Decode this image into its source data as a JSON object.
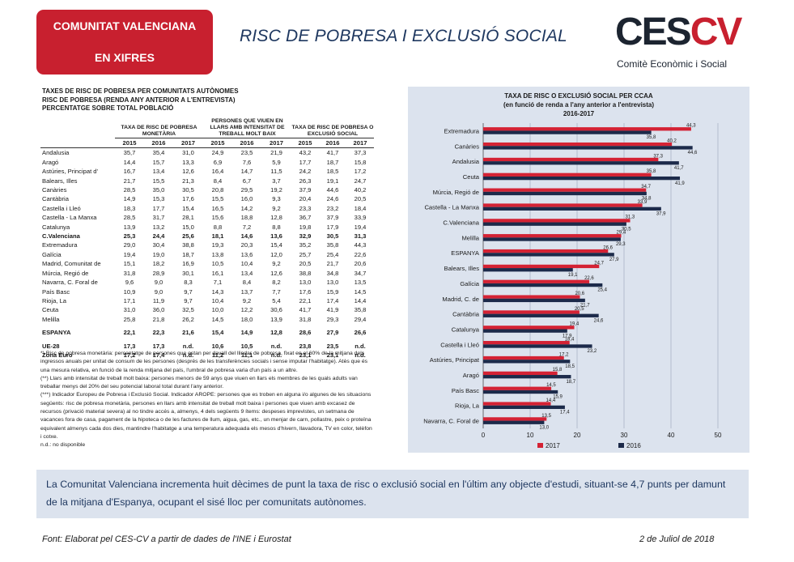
{
  "badge": {
    "line1": "COMUNITAT VALENCIANA",
    "line2": "EN XIFRES"
  },
  "page_title": "RISC DE POBRESA I EXCLUSIÓ SOCIAL",
  "logo": {
    "ces": "CES",
    "cv": "CV",
    "subtitle": "Comitè Econòmic i Social"
  },
  "table": {
    "title_lines": [
      "TAXES DE RISC DE POBRESA PER COMUNITATS AUTÒNOMES",
      "RISC DE POBRESA (RENDA ANY ANTERIOR A L'ENTREVISTA)",
      "PERCENTATGE SOBRE TOTAL POBLACIÓ"
    ],
    "group_headers": [
      "TAXA DE RISC DE POBRESA MONETÀRIA",
      "PERSONES QUE VIUEN EN LLARS AMB INTENSITAT DE TREBALL MOLT BAIX",
      "TAXA DE RISC DE POBRESA O EXCLUSIÓ SOCIAL"
    ],
    "years": [
      "2015",
      "2016",
      "2017",
      "2015",
      "2016",
      "2017",
      "2015",
      "2016",
      "2017"
    ],
    "rows": [
      {
        "region": "Andalusia",
        "values": [
          "35,7",
          "35,4",
          "31,0",
          "24,9",
          "23,5",
          "21,9",
          "43,2",
          "41,7",
          "37,3"
        ]
      },
      {
        "region": "Aragó",
        "values": [
          "14,4",
          "15,7",
          "13,3",
          "6,9",
          "7,6",
          "5,9",
          "17,7",
          "18,7",
          "15,8"
        ]
      },
      {
        "region": "Astúries, Principat d'",
        "values": [
          "16,7",
          "13,4",
          "12,6",
          "16,4",
          "14,7",
          "11,5",
          "24,2",
          "18,5",
          "17,2"
        ]
      },
      {
        "region": "Balears, Illes",
        "values": [
          "21,7",
          "15,5",
          "21,3",
          "8,4",
          "6,7",
          "3,7",
          "26,3",
          "19,1",
          "24,7"
        ]
      },
      {
        "region": "Canàries",
        "values": [
          "28,5",
          "35,0",
          "30,5",
          "20,8",
          "29,5",
          "19,2",
          "37,9",
          "44,6",
          "40,2"
        ]
      },
      {
        "region": "Cantàbria",
        "values": [
          "14,9",
          "15,3",
          "17,6",
          "15,5",
          "16,0",
          "9,3",
          "20,4",
          "24,6",
          "20,5"
        ]
      },
      {
        "region": "Castella i Lleó",
        "values": [
          "18,3",
          "17,7",
          "15,4",
          "16,5",
          "14,2",
          "9,2",
          "23,3",
          "23,2",
          "18,4"
        ]
      },
      {
        "region": "Castella - La Manxa",
        "values": [
          "28,5",
          "31,7",
          "28,1",
          "15,6",
          "18,8",
          "12,8",
          "36,7",
          "37,9",
          "33,9"
        ]
      },
      {
        "region": "Catalunya",
        "values": [
          "13,9",
          "13,2",
          "15,0",
          "8,8",
          "7,2",
          "8,8",
          "19,8",
          "17,9",
          "19,4"
        ]
      },
      {
        "region": "C.Valenciana",
        "values": [
          "25,3",
          "24,4",
          "25,6",
          "18,1",
          "14,6",
          "13,6",
          "32,9",
          "30,5",
          "31,3"
        ],
        "bold": true
      },
      {
        "region": "Extremadura",
        "values": [
          "29,0",
          "30,4",
          "38,8",
          "19,3",
          "20,3",
          "15,4",
          "35,2",
          "35,8",
          "44,3"
        ]
      },
      {
        "region": "Galícia",
        "values": [
          "19,4",
          "19,0",
          "18,7",
          "13,8",
          "13,6",
          "12,0",
          "25,7",
          "25,4",
          "22,6"
        ]
      },
      {
        "region": "Madrid, Comunitat de",
        "values": [
          "15,1",
          "18,2",
          "16,9",
          "10,5",
          "10,4",
          "9,2",
          "20,5",
          "21,7",
          "20,6"
        ]
      },
      {
        "region": "Múrcia, Regió de",
        "values": [
          "31,8",
          "28,9",
          "30,1",
          "16,1",
          "13,4",
          "12,6",
          "38,8",
          "34,8",
          "34,7"
        ]
      },
      {
        "region": "Navarra, C. Foral de",
        "values": [
          "9,6",
          "9,0",
          "8,3",
          "7,1",
          "8,4",
          "8,2",
          "13,0",
          "13,0",
          "13,5"
        ]
      },
      {
        "region": "País Basc",
        "values": [
          "10,9",
          "9,0",
          "9,7",
          "14,3",
          "13,7",
          "7,7",
          "17,6",
          "15,9",
          "14,5"
        ]
      },
      {
        "region": "Rioja, La",
        "values": [
          "17,1",
          "11,9",
          "9,7",
          "10,4",
          "9,2",
          "5,4",
          "22,1",
          "17,4",
          "14,4"
        ]
      },
      {
        "region": "Ceuta",
        "values": [
          "31,0",
          "36,0",
          "32,5",
          "10,0",
          "12,2",
          "30,6",
          "41,7",
          "41,9",
          "35,8"
        ]
      },
      {
        "region": "Melilla",
        "values": [
          "25,8",
          "21,8",
          "26,2",
          "14,5",
          "18,0",
          "13,9",
          "31,8",
          "29,3",
          "29,4"
        ]
      },
      {
        "region": "ESPANYA",
        "values": [
          "22,1",
          "22,3",
          "21,6",
          "15,4",
          "14,9",
          "12,8",
          "28,6",
          "27,9",
          "26,6"
        ],
        "bold": true,
        "gap": true
      },
      {
        "region": "UE-28",
        "values": [
          "17,3",
          "17,3",
          "n.d.",
          "10,6",
          "10,5",
          "n.d.",
          "23,8",
          "23,5",
          "n.d."
        ],
        "bold": true,
        "gap": true
      },
      {
        "region": "Zona Euro",
        "values": [
          "17,2",
          "17,4",
          "n.d.",
          "11,2",
          "11,1",
          "n.d.",
          "23,1",
          "23,1",
          "n.d."
        ],
        "bold": true
      }
    ]
  },
  "notes": [
    "*) Risc de pobresa monetària: percentatge de persones que estan per davall del llindar de pobresa, fixat en el 60% de la mitjana dels ingressos anuals per unitat de consum de les persones (després de les transferències socials i sense imputar l'habitatge). Atès que és una mesura relativa, en funció de la renda mitjana del país, l'umbral de pobresa varia d'un país a un altre.",
    "(**) Llars amb intensitat de treball molt baixa: persones menors de 59 anys que viuen en llars els membres de les quals adults van treballar menys del 20% del seu potencial laboral total durant l'any anterior.",
    "(***) Indicador Europeu de Pobresa i Exclusió Social. Indicador AROPE: persones que es troben en alguna i/o algunes de les situacions següents: risc de pobresa monetària, persones en llars amb intensitat de treball molt baixa i persones que viuen amb excasez de recursos (privació material severa) al no tindre accés a, almenys, 4 dels següents 9 ítems: despeses imprevistes, un setmana de vacances fora de casa, pagament de la hipoteca o de les factures de llum, aigua, gas, etc., un menjar de carn, pollastre, peix o proteïna equivalent almenys cada dos dies, mantindre l'habitatge a una temperatura adequada els mesos d'hivern, llavadora, TV en color, telèfon i cotxe.",
    "n.d.: no disponible"
  ],
  "chart_data": {
    "type": "bar",
    "orientation": "horizontal",
    "title": "TAXA DE RISC O EXCLUSIÓ SOCIAL PER CCAA",
    "subtitle": "(en funció de renda a l'any anterior a l'entrevista)",
    "period": "2016-2017",
    "categories": [
      "Extremadura",
      "Canàries",
      "Andalusia",
      "Ceuta",
      "Múrcia, Regió de",
      "Castella - La Manxa",
      "C.Valenciana",
      "Melilla",
      "ESPANYA",
      "Balears, Illes",
      "Galícia",
      "Madrid, C. de",
      "Cantàbria",
      "Catalunya",
      "Castella i Lleó",
      "Astúries, Principat",
      "Aragó",
      "País Basc",
      "Rioja, La",
      "Navarra, C. Foral de"
    ],
    "series": [
      {
        "name": "2017",
        "color": "#d42234",
        "values": [
          44.3,
          40.2,
          37.3,
          35.8,
          34.7,
          33.9,
          31.3,
          29.4,
          26.6,
          24.7,
          22.6,
          20.6,
          20.5,
          19.4,
          18.4,
          17.2,
          15.8,
          14.5,
          14.4,
          13.5
        ],
        "labels": [
          "44,3",
          "40,2",
          "37,3",
          "35,8",
          "34,7",
          "33,9",
          "31,3",
          "29,4",
          "26,6",
          "24,7",
          "22,6",
          "20,6",
          "20,5",
          "19,4",
          "18,4",
          "17,2",
          "15,8",
          "14,5",
          "14,4",
          "13,5"
        ]
      },
      {
        "name": "2016",
        "color": "#1c2a4a",
        "values": [
          35.8,
          44.6,
          41.7,
          41.9,
          34.8,
          37.9,
          30.5,
          29.3,
          27.9,
          19.1,
          25.4,
          21.7,
          24.6,
          17.9,
          23.2,
          18.5,
          18.7,
          15.9,
          17.4,
          13.0
        ],
        "labels": [
          "35,8",
          "44,6",
          "41,7",
          "41,9",
          "34,8",
          "37,9",
          "30,5",
          "29,3",
          "27,9",
          "19,1",
          "25,4",
          "21,7",
          "24,6",
          "17,9",
          "23,2",
          "18,5",
          "18,7",
          "15,9",
          "17,4",
          "13,0"
        ]
      }
    ],
    "xlim": [
      0,
      50
    ],
    "xticks": [
      "0",
      "10",
      "20",
      "30",
      "40",
      "50"
    ],
    "grid": true,
    "legend": "bottom"
  },
  "summary": "La Comunitat Valenciana incrementa huit dècimes de punt la taxa de risc o exclusió social en l'últim any objecte d'estudi, situant-se 4,7 punts per damunt de la mitjana d'Espanya, ocupant el sisé lloc per comunitats autònomes.",
  "footer": {
    "source": "Font: Elaborat pel CES-CV a partir de dades de l'INE i Eurostat",
    "date": "2 de Juliol de 2018"
  }
}
